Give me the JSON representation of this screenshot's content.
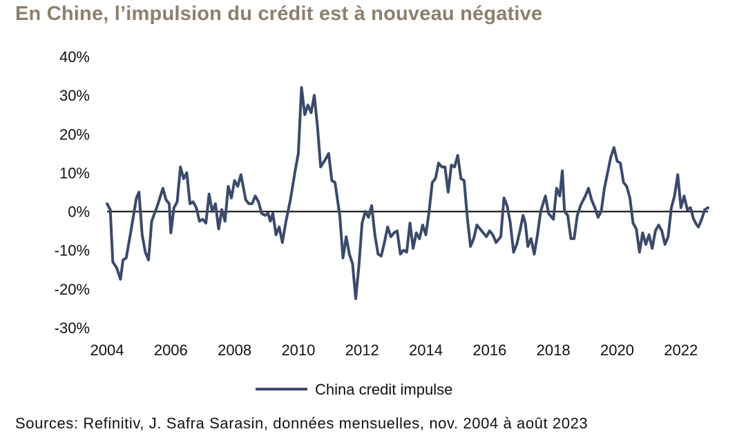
{
  "title": "En Chine, l’impulsion du crédit est à nouveau négative",
  "source": "Sources: Refinitiv, J. Safra Sarasin, données mensuelles, nov. 2004 à août 2023",
  "colors": {
    "title": "#8c806d",
    "series": "#3b4a6b",
    "zero_line": "#000000"
  },
  "chart_data": {
    "type": "line",
    "title": "En Chine, l’impulsion du crédit est à nouveau négative",
    "xlabel": "",
    "ylabel": "",
    "xlim": [
      2004.0,
      2022.85
    ],
    "ylim": [
      -30,
      40
    ],
    "x_ticks": [
      2004,
      2006,
      2008,
      2010,
      2012,
      2014,
      2016,
      2018,
      2020,
      2022
    ],
    "y_ticks": [
      {
        "value": 40,
        "label": "40%"
      },
      {
        "value": 30,
        "label": "30%"
      },
      {
        "value": 20,
        "label": "20%"
      },
      {
        "value": 10,
        "label": "10%"
      },
      {
        "value": 0,
        "label": "0%"
      },
      {
        "value": -10,
        "label": "-10%"
      },
      {
        "value": -20,
        "label": "-20%"
      },
      {
        "value": -30,
        "label": "-30%"
      }
    ],
    "grid": false,
    "zero_line": true,
    "legend": "bottom-center",
    "series": [
      {
        "name": "China credit impulse",
        "color": "#3b4a6b",
        "points": [
          [
            2004.0,
            2
          ],
          [
            2004.1,
            0.5
          ],
          [
            2004.18,
            -13
          ],
          [
            2004.3,
            -14.5
          ],
          [
            2004.42,
            -17.5
          ],
          [
            2004.5,
            -12.5
          ],
          [
            2004.6,
            -12
          ],
          [
            2004.75,
            -5
          ],
          [
            2004.92,
            3.5
          ],
          [
            2005.0,
            5
          ],
          [
            2005.1,
            -6
          ],
          [
            2005.2,
            -10.5
          ],
          [
            2005.3,
            -12.5
          ],
          [
            2005.4,
            -2.5
          ],
          [
            2005.58,
            1.5
          ],
          [
            2005.75,
            6
          ],
          [
            2005.85,
            3
          ],
          [
            2005.95,
            2
          ],
          [
            2006.0,
            -5.5
          ],
          [
            2006.1,
            1
          ],
          [
            2006.2,
            2.5
          ],
          [
            2006.3,
            11.5
          ],
          [
            2006.4,
            8.5
          ],
          [
            2006.5,
            10
          ],
          [
            2006.6,
            2
          ],
          [
            2006.7,
            2.5
          ],
          [
            2006.8,
            1
          ],
          [
            2006.9,
            -2.5
          ],
          [
            2007.0,
            -2
          ],
          [
            2007.1,
            -3
          ],
          [
            2007.2,
            4.5
          ],
          [
            2007.3,
            0
          ],
          [
            2007.4,
            2
          ],
          [
            2007.5,
            -4.5
          ],
          [
            2007.6,
            0.5
          ],
          [
            2007.7,
            -2.5
          ],
          [
            2007.8,
            6.5
          ],
          [
            2007.9,
            3.5
          ],
          [
            2008.0,
            8
          ],
          [
            2008.1,
            6.5
          ],
          [
            2008.2,
            9.5
          ],
          [
            2008.35,
            3
          ],
          [
            2008.45,
            2
          ],
          [
            2008.55,
            2
          ],
          [
            2008.65,
            4
          ],
          [
            2008.75,
            2.5
          ],
          [
            2008.85,
            -0.5
          ],
          [
            2008.95,
            -1
          ],
          [
            2009.05,
            -0.5
          ],
          [
            2009.12,
            -2.5
          ],
          [
            2009.2,
            -0.5
          ],
          [
            2009.3,
            -6
          ],
          [
            2009.4,
            -4
          ],
          [
            2009.5,
            -8
          ],
          [
            2009.6,
            -3
          ],
          [
            2009.75,
            3
          ],
          [
            2009.9,
            10.5
          ],
          [
            2010.0,
            15
          ],
          [
            2010.1,
            32
          ],
          [
            2010.2,
            25
          ],
          [
            2010.3,
            27.5
          ],
          [
            2010.4,
            25.5
          ],
          [
            2010.5,
            30
          ],
          [
            2010.6,
            22
          ],
          [
            2010.7,
            11.5
          ],
          [
            2010.85,
            13.5
          ],
          [
            2010.95,
            15
          ],
          [
            2011.05,
            8
          ],
          [
            2011.15,
            7.5
          ],
          [
            2011.3,
            -1
          ],
          [
            2011.4,
            -12
          ],
          [
            2011.5,
            -6.5
          ],
          [
            2011.6,
            -11
          ],
          [
            2011.7,
            -13.5
          ],
          [
            2011.8,
            -22.5
          ],
          [
            2011.9,
            -14
          ],
          [
            2012.0,
            -3
          ],
          [
            2012.1,
            0
          ],
          [
            2012.2,
            -1.5
          ],
          [
            2012.3,
            1.5
          ],
          [
            2012.4,
            -6
          ],
          [
            2012.5,
            -11
          ],
          [
            2012.6,
            -11.5
          ],
          [
            2012.7,
            -8
          ],
          [
            2012.8,
            -4
          ],
          [
            2012.9,
            -6.5
          ],
          [
            2013.0,
            -5.5
          ],
          [
            2013.1,
            -5
          ],
          [
            2013.2,
            -11
          ],
          [
            2013.3,
            -10
          ],
          [
            2013.4,
            -10.5
          ],
          [
            2013.5,
            -3
          ],
          [
            2013.6,
            -9.5
          ],
          [
            2013.7,
            -5.5
          ],
          [
            2013.8,
            -7
          ],
          [
            2013.9,
            -3.5
          ],
          [
            2014.0,
            -6
          ],
          [
            2014.1,
            0
          ],
          [
            2014.2,
            7.5
          ],
          [
            2014.3,
            8.5
          ],
          [
            2014.4,
            12.5
          ],
          [
            2014.5,
            11.5
          ],
          [
            2014.6,
            11.5
          ],
          [
            2014.7,
            5
          ],
          [
            2014.8,
            12
          ],
          [
            2014.9,
            11.5
          ],
          [
            2015.0,
            14.5
          ],
          [
            2015.1,
            8.5
          ],
          [
            2015.2,
            8
          ],
          [
            2015.3,
            -1.5
          ],
          [
            2015.4,
            -9
          ],
          [
            2015.5,
            -7
          ],
          [
            2015.6,
            -3.5
          ],
          [
            2015.75,
            -5
          ],
          [
            2015.9,
            -6.5
          ],
          [
            2016.0,
            -5
          ],
          [
            2016.1,
            -6
          ],
          [
            2016.2,
            -8
          ],
          [
            2016.35,
            -6.5
          ],
          [
            2016.45,
            3.5
          ],
          [
            2016.55,
            1.5
          ],
          [
            2016.65,
            -3
          ],
          [
            2016.75,
            -10.5
          ],
          [
            2016.85,
            -8.5
          ],
          [
            2016.95,
            -5
          ],
          [
            2017.05,
            -1
          ],
          [
            2017.12,
            -3
          ],
          [
            2017.2,
            -9
          ],
          [
            2017.3,
            -7
          ],
          [
            2017.4,
            -11
          ],
          [
            2017.5,
            -6
          ],
          [
            2017.6,
            0
          ],
          [
            2017.75,
            4
          ],
          [
            2017.85,
            -0.5
          ],
          [
            2018.0,
            -2
          ],
          [
            2018.1,
            6
          ],
          [
            2018.2,
            4
          ],
          [
            2018.28,
            10.5
          ],
          [
            2018.35,
            0
          ],
          [
            2018.45,
            -1
          ],
          [
            2018.55,
            -7
          ],
          [
            2018.65,
            -7
          ],
          [
            2018.75,
            -1
          ],
          [
            2018.85,
            1.5
          ],
          [
            2019.0,
            4
          ],
          [
            2019.1,
            6
          ],
          [
            2019.2,
            3
          ],
          [
            2019.3,
            1
          ],
          [
            2019.4,
            -1.5
          ],
          [
            2019.5,
            0
          ],
          [
            2019.6,
            6
          ],
          [
            2019.7,
            10
          ],
          [
            2019.8,
            14
          ],
          [
            2019.9,
            16.5
          ],
          [
            2020.0,
            13
          ],
          [
            2020.1,
            12.5
          ],
          [
            2020.2,
            7.5
          ],
          [
            2020.3,
            6.5
          ],
          [
            2020.4,
            3.5
          ],
          [
            2020.5,
            -3
          ],
          [
            2020.6,
            -4.5
          ],
          [
            2020.7,
            -10.5
          ],
          [
            2020.8,
            -5.5
          ],
          [
            2020.9,
            -8.5
          ],
          [
            2021.0,
            -6
          ],
          [
            2021.1,
            -9.5
          ],
          [
            2021.2,
            -5
          ],
          [
            2021.3,
            -3.5
          ],
          [
            2021.4,
            -5
          ],
          [
            2021.5,
            -8.5
          ],
          [
            2021.6,
            -6.5
          ],
          [
            2021.7,
            1
          ],
          [
            2021.8,
            4
          ],
          [
            2021.9,
            9.5
          ],
          [
            2022.0,
            1
          ],
          [
            2022.1,
            4
          ],
          [
            2022.2,
            0.5
          ],
          [
            2022.3,
            1
          ],
          [
            2022.4,
            -2
          ],
          [
            2022.5,
            -3.5
          ],
          [
            2022.55,
            -4
          ],
          [
            2022.65,
            -2
          ],
          [
            2022.75,
            0.5
          ],
          [
            2022.85,
            1
          ]
        ]
      }
    ],
    "legend_entries": [
      "China credit impulse"
    ]
  }
}
